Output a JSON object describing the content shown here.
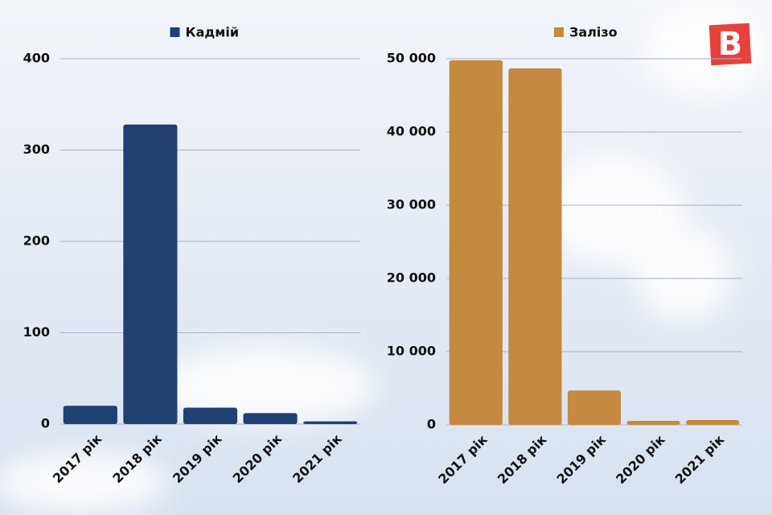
{
  "logo": "B",
  "chart_data": [
    {
      "type": "bar",
      "categories": [
        "2017 рік",
        "2018 рік",
        "2019 рік",
        "2020 рік",
        "2021 рік"
      ],
      "series": [
        {
          "name": "Кадмій",
          "color": "#213f70",
          "values": [
            20,
            328,
            18,
            12,
            3
          ]
        }
      ],
      "ylim": [
        0,
        400
      ],
      "yticks": [
        0,
        100,
        200,
        300,
        400
      ],
      "grid": true
    },
    {
      "type": "bar",
      "categories": [
        "2017 рік",
        "2018 рік",
        "2019 рік",
        "2020 рік",
        "2021 рік"
      ],
      "series": [
        {
          "name": "Залізо",
          "color": "#c48a40",
          "values": [
            49800,
            48700,
            4700,
            550,
            660
          ]
        }
      ],
      "ylim": [
        0,
        50000
      ],
      "yticks": [
        0,
        {
          "value": 10000,
          "label": "10 000"
        },
        {
          "value": 20000,
          "label": "20 000"
        },
        {
          "value": 30000,
          "label": "30 000"
        },
        {
          "value": 40000,
          "label": "40 000"
        },
        {
          "value": 50000,
          "label": "50 000"
        }
      ],
      "grid": true
    }
  ]
}
